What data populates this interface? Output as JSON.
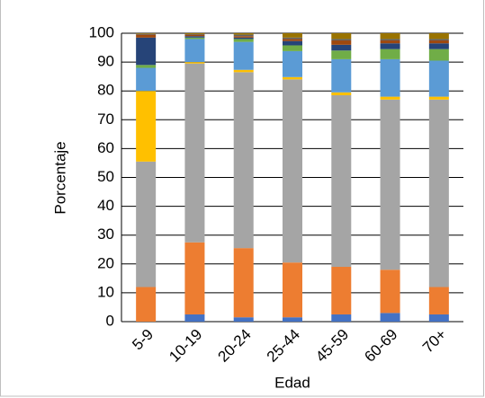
{
  "chart_data": {
    "type": "stacked_bar",
    "ylabel": "Porcentaje",
    "xlabel": "Edad",
    "categories": [
      "5-9",
      "10-19",
      "20-24",
      "25-44",
      "45-59",
      "60-69",
      "70+"
    ],
    "series": [
      {
        "color": "#4472c4",
        "values": [
          0,
          2.5,
          1.5,
          1.5,
          2.5,
          3,
          2.5
        ]
      },
      {
        "color": "#ed7d31",
        "values": [
          12,
          25,
          24,
          19,
          16.5,
          15,
          9.5
        ]
      },
      {
        "color": "#a5a5a5",
        "values": [
          43.5,
          62,
          61,
          63.5,
          59.5,
          59,
          65
        ]
      },
      {
        "color": "#ffc000",
        "values": [
          24.5,
          0.5,
          0.8,
          0.8,
          1,
          1,
          1
        ]
      },
      {
        "color": "#5b9bd5",
        "values": [
          8,
          8,
          9.7,
          9,
          11.5,
          13,
          12.5
        ]
      },
      {
        "color": "#70ad47",
        "values": [
          1,
          0.5,
          1,
          2,
          3,
          3.5,
          4
        ]
      },
      {
        "color": "#264478",
        "values": [
          9.5,
          0.5,
          0.5,
          1.5,
          2,
          2,
          2
        ]
      },
      {
        "color": "#9e480e",
        "values": [
          1,
          0.5,
          0.5,
          0.7,
          1.5,
          1,
          1
        ]
      },
      {
        "color": "#636363",
        "values": [
          0.3,
          0.2,
          0.5,
          0.5,
          0.5,
          0.5,
          0.5
        ]
      },
      {
        "color": "#997300",
        "values": [
          0.2,
          0.3,
          0.5,
          1.5,
          2,
          2,
          2
        ]
      }
    ],
    "ylim": [
      0,
      100
    ],
    "yticks": [
      0,
      10,
      20,
      30,
      40,
      50,
      60,
      70,
      80,
      90,
      100
    ],
    "grid": true
  }
}
